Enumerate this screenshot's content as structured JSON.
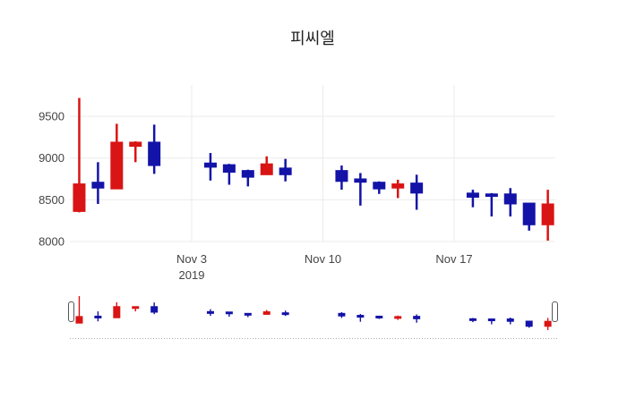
{
  "chart_data": {
    "type": "candlestick",
    "title": "피씨엘",
    "legend": "none",
    "grid": true,
    "rangeslider": true,
    "increasing_color": "#d91414",
    "decreasing_color": "#1313a8",
    "grid_color": "#ebebeb",
    "tick_color": "#444444",
    "y_ticks": [
      9500,
      9000,
      8500,
      8000
    ],
    "y_range": [
      7914,
      9875
    ],
    "x_range_days": [
      -0.5,
      25.4
    ],
    "x_ticks": [
      {
        "label": "Nov 3",
        "sublabel": "2019",
        "day": 6
      },
      {
        "label": "Nov 10",
        "sublabel": "",
        "day": 13
      },
      {
        "label": "Nov 17",
        "sublabel": "",
        "day": 20
      }
    ],
    "candles": [
      {
        "date": "2019-10-28",
        "day": 0,
        "open": 8360,
        "high": 9720,
        "low": 8350,
        "close": 8690
      },
      {
        "date": "2019-10-29",
        "day": 1,
        "open": 8710,
        "high": 8950,
        "low": 8450,
        "close": 8640
      },
      {
        "date": "2019-10-30",
        "day": 2,
        "open": 8630,
        "high": 9410,
        "low": 8630,
        "close": 9190
      },
      {
        "date": "2019-10-31",
        "day": 3,
        "open": 9140,
        "high": 9200,
        "low": 8950,
        "close": 9190
      },
      {
        "date": "2019-11-01",
        "day": 4,
        "open": 9190,
        "high": 9400,
        "low": 8810,
        "close": 8910
      },
      {
        "date": "2019-11-04",
        "day": 7,
        "open": 8940,
        "high": 9060,
        "low": 8730,
        "close": 8890
      },
      {
        "date": "2019-11-05",
        "day": 8,
        "open": 8920,
        "high": 8930,
        "low": 8680,
        "close": 8830
      },
      {
        "date": "2019-11-06",
        "day": 9,
        "open": 8850,
        "high": 8860,
        "low": 8660,
        "close": 8770
      },
      {
        "date": "2019-11-07",
        "day": 10,
        "open": 8800,
        "high": 9020,
        "low": 8800,
        "close": 8930
      },
      {
        "date": "2019-11-08",
        "day": 11,
        "open": 8880,
        "high": 8990,
        "low": 8720,
        "close": 8800
      },
      {
        "date": "2019-11-11",
        "day": 14,
        "open": 8850,
        "high": 8910,
        "low": 8620,
        "close": 8720
      },
      {
        "date": "2019-11-12",
        "day": 15,
        "open": 8750,
        "high": 8820,
        "low": 8430,
        "close": 8710
      },
      {
        "date": "2019-11-13",
        "day": 16,
        "open": 8710,
        "high": 8720,
        "low": 8570,
        "close": 8630
      },
      {
        "date": "2019-11-14",
        "day": 17,
        "open": 8640,
        "high": 8740,
        "low": 8520,
        "close": 8690
      },
      {
        "date": "2019-11-15",
        "day": 18,
        "open": 8700,
        "high": 8800,
        "low": 8380,
        "close": 8580
      },
      {
        "date": "2019-11-18",
        "day": 21,
        "open": 8580,
        "high": 8620,
        "low": 8410,
        "close": 8530
      },
      {
        "date": "2019-11-19",
        "day": 22,
        "open": 8570,
        "high": 8580,
        "low": 8300,
        "close": 8540
      },
      {
        "date": "2019-11-20",
        "day": 23,
        "open": 8570,
        "high": 8640,
        "low": 8300,
        "close": 8450
      },
      {
        "date": "2019-11-21",
        "day": 24,
        "open": 8460,
        "high": 8460,
        "low": 8130,
        "close": 8200
      },
      {
        "date": "2019-11-22",
        "day": 25,
        "open": 8200,
        "high": 8620,
        "low": 8010,
        "close": 8450
      }
    ]
  }
}
